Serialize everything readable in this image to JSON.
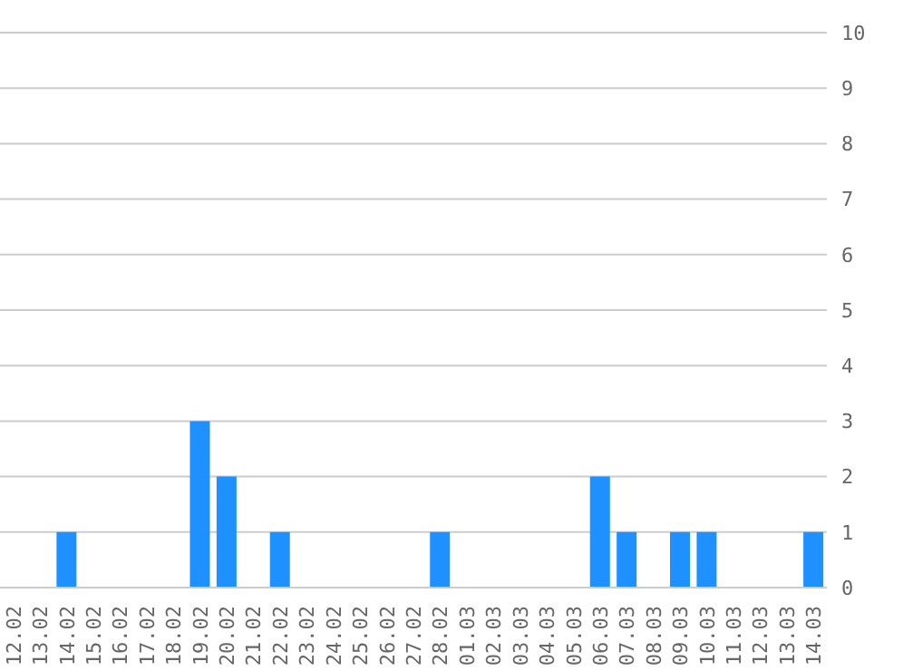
{
  "chart_data": {
    "type": "bar",
    "categories": [
      "12.02",
      "13.02",
      "14.02",
      "15.02",
      "16.02",
      "17.02",
      "18.02",
      "19.02",
      "20.02",
      "21.02",
      "22.02",
      "23.02",
      "24.02",
      "25.02",
      "26.02",
      "27.02",
      "28.02",
      "01.03",
      "02.03",
      "03.03",
      "04.03",
      "05.03",
      "06.03",
      "07.03",
      "08.03",
      "09.03",
      "10.03",
      "11.03",
      "12.03",
      "13.03",
      "14.03"
    ],
    "values": [
      0,
      0,
      1,
      0,
      0,
      0,
      0,
      3,
      2,
      0,
      1,
      0,
      0,
      0,
      0,
      0,
      1,
      0,
      0,
      0,
      0,
      0,
      2,
      1,
      0,
      1,
      1,
      0,
      0,
      0,
      1
    ],
    "color": "#1e90ff",
    "ylim": [
      0,
      10
    ],
    "yticks": [
      0,
      1,
      2,
      3,
      4,
      5,
      6,
      7,
      8,
      9,
      10
    ],
    "grid": "y"
  }
}
